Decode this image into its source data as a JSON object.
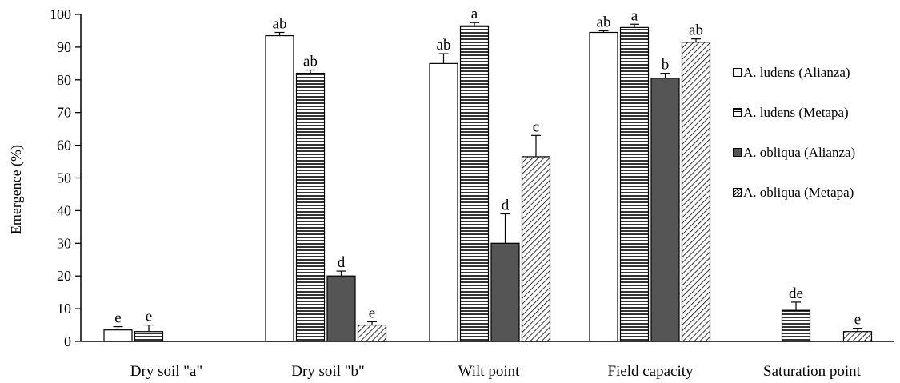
{
  "chart_data": {
    "type": "bar",
    "ylabel": "Emergence (%)",
    "xlabel": "",
    "ylim": [
      0,
      100
    ],
    "yticks": [
      0,
      10,
      20,
      30,
      40,
      50,
      60,
      70,
      80,
      90,
      100
    ],
    "categories": [
      "Dry soil \"a\"",
      "Dry soil \"b\"",
      "Wilt point",
      "Field capacity",
      "Saturation point"
    ],
    "legend_position": "right",
    "series": [
      {
        "name": "A. ludens (Alianza)",
        "pattern": "white",
        "values": [
          3.5,
          93.5,
          85,
          94.5,
          null
        ],
        "errors": [
          1,
          1,
          3,
          0.5,
          null
        ],
        "letters": [
          "e",
          "ab",
          "ab",
          "ab",
          ""
        ]
      },
      {
        "name": "A. ludens (Metapa)",
        "pattern": "horizontal-lines",
        "values": [
          3,
          82,
          96.5,
          96,
          9.5
        ],
        "errors": [
          2,
          1,
          1,
          1,
          2.5
        ],
        "letters": [
          "e",
          "ab",
          "a",
          "a",
          "de"
        ]
      },
      {
        "name": "A. obliqua (Alianza)",
        "pattern": "dark-gray",
        "values": [
          null,
          20,
          30,
          80.5,
          null
        ],
        "errors": [
          null,
          1.5,
          9,
          1.5,
          null
        ],
        "letters": [
          "",
          "d",
          "d",
          "b",
          ""
        ]
      },
      {
        "name": "A. obliqua (Metapa)",
        "pattern": "diagonal-hatch",
        "values": [
          null,
          5,
          56.5,
          91.5,
          3
        ],
        "errors": [
          null,
          1,
          6.5,
          1,
          1
        ],
        "letters": [
          "",
          "e",
          "c",
          "ab",
          "e"
        ]
      }
    ]
  }
}
